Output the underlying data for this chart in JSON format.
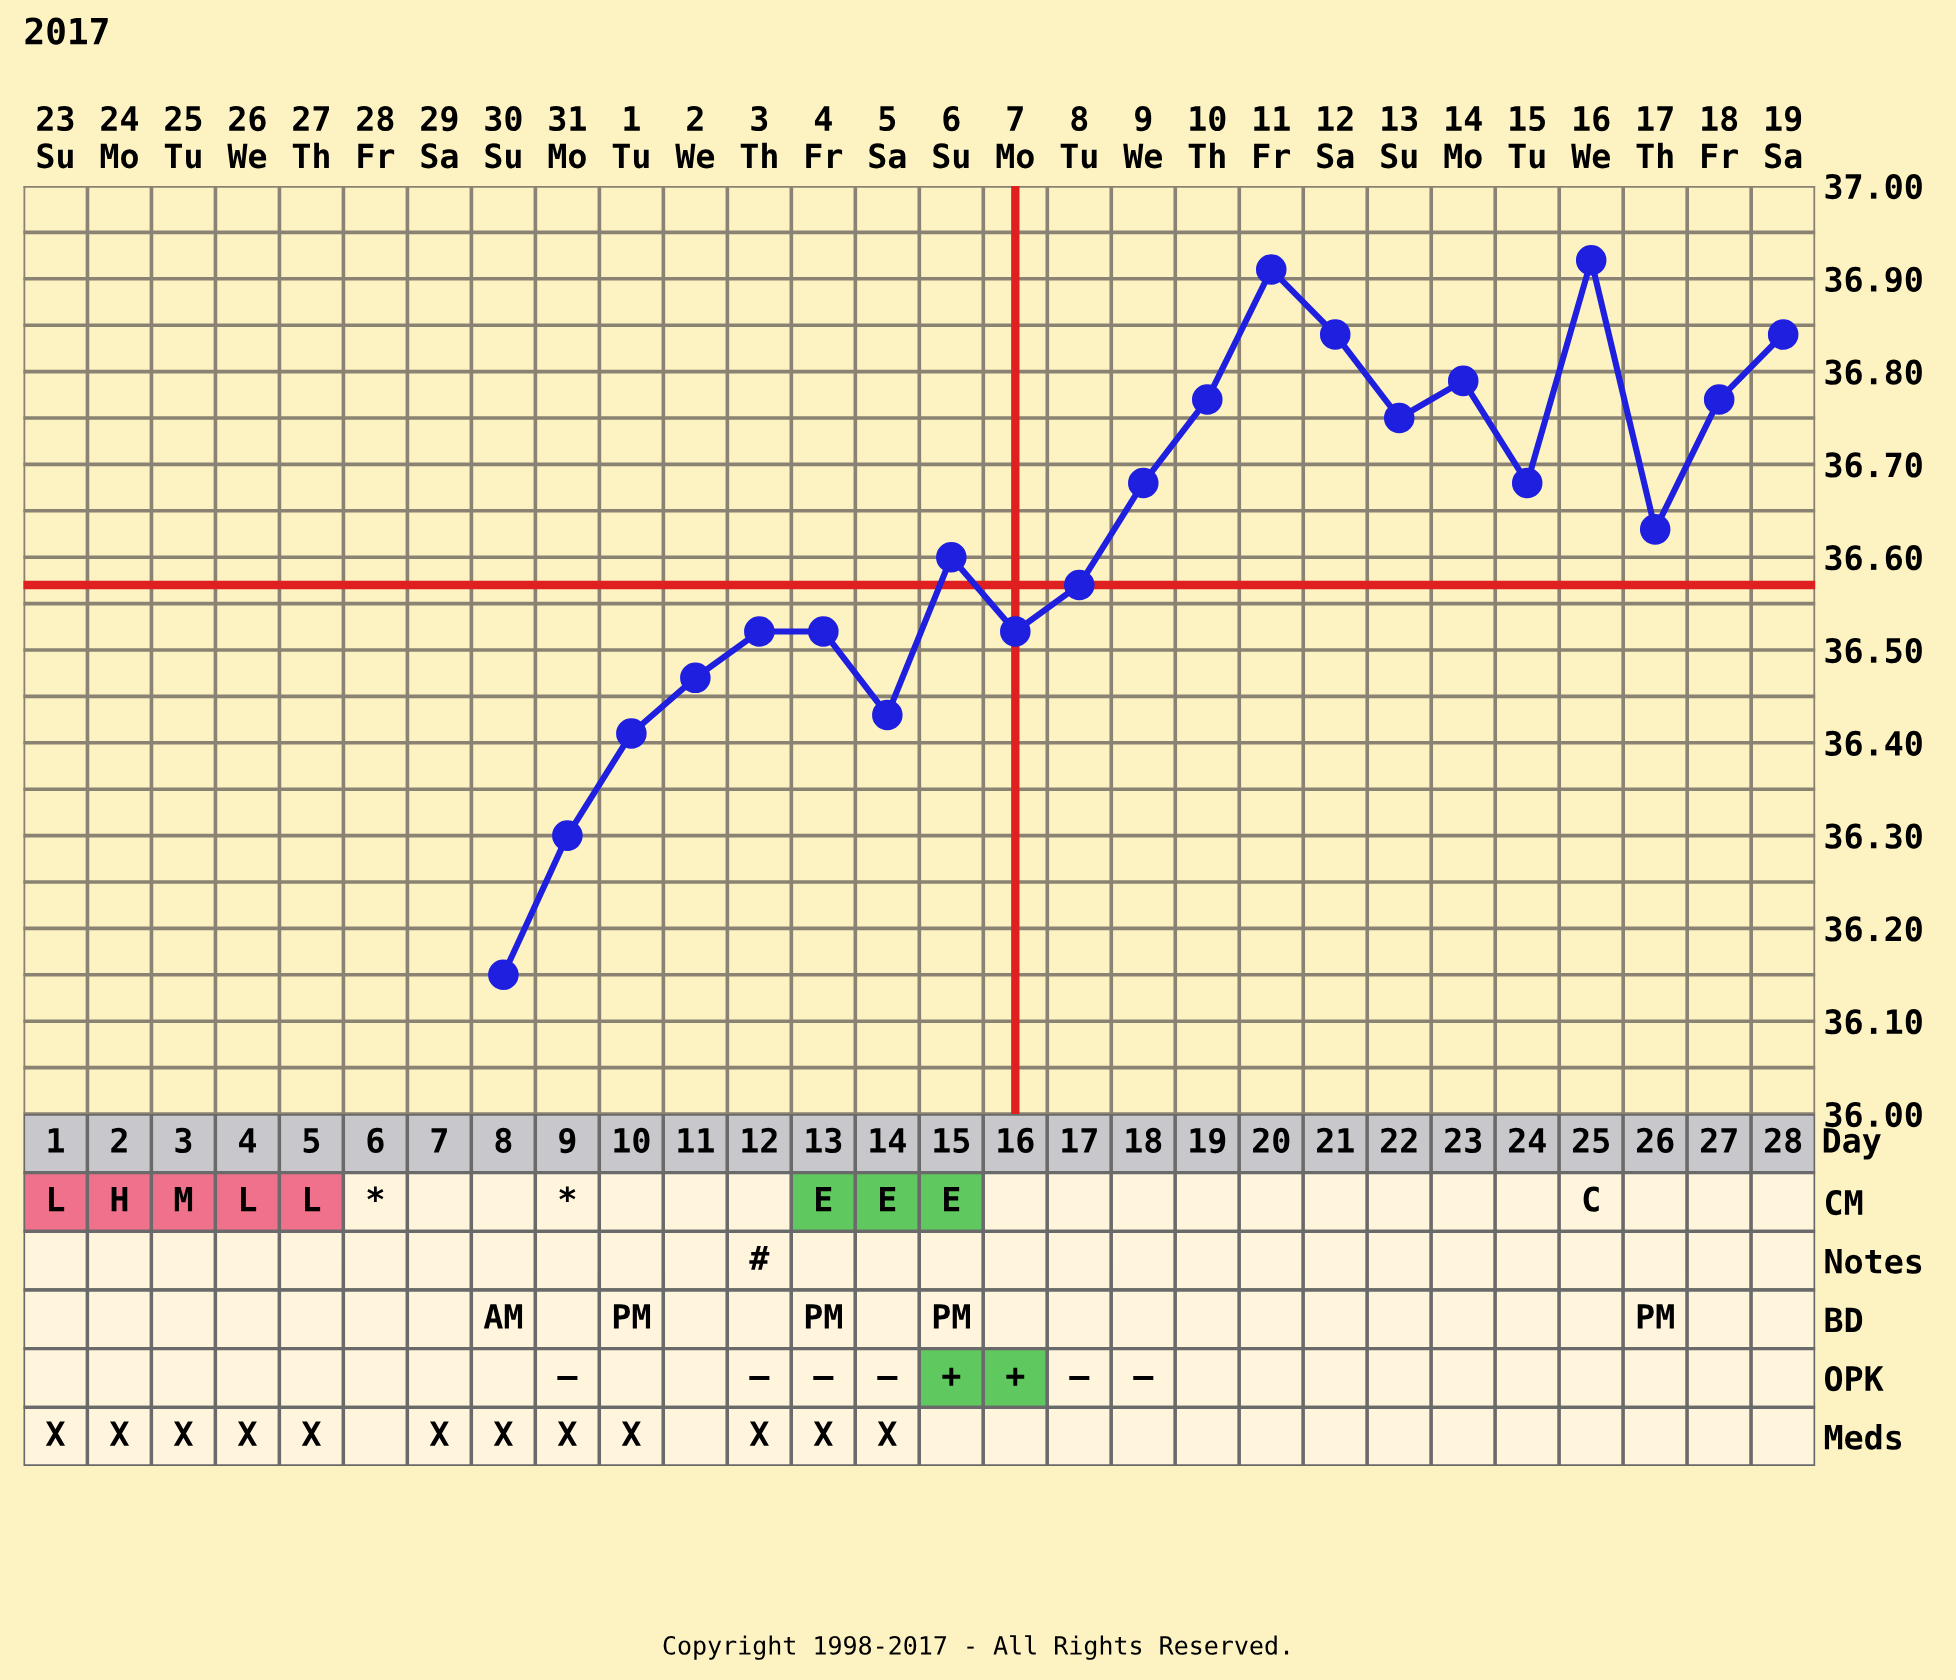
{
  "chart_data": [
    {
      "type": "line",
      "title": "2017",
      "categories": [
        "23\nSu",
        "24\nMo",
        "25\nTu",
        "26\nWe",
        "27\nTh",
        "28\nFr",
        "29\nSa",
        "30\nSu",
        "31\nMo",
        "1\nTu",
        "2\nWe",
        "3\nTh",
        "4\nFr",
        "5\nSa",
        "6\nSu",
        "7\nMo",
        "8\nTu",
        "9\nWe",
        "10\nTh",
        "11\nFr",
        "12\nSa",
        "13\nSu",
        "14\nMo",
        "15\nTu",
        "16\nWe",
        "17\nTh",
        "18\nFr",
        "19\nSa"
      ],
      "series": [
        {
          "color": "#1f1fe0",
          "values": [
            null,
            null,
            null,
            null,
            null,
            null,
            null,
            36.15,
            36.3,
            36.41,
            36.47,
            36.52,
            36.52,
            36.43,
            36.6,
            36.52,
            36.57,
            36.68,
            36.77,
            36.91,
            36.84,
            36.75,
            36.79,
            36.68,
            36.92,
            36.63,
            36.77,
            36.84
          ]
        }
      ],
      "marker": "circle",
      "line_style": "solid",
      "ylim": [
        36.0,
        37.0
      ],
      "yticks": [
        "36.00",
        {
          "value": 36.05,
          "label": null
        },
        {
          "value": 36.1,
          "label": "36.10"
        },
        {
          "value": 36.15,
          "label": null
        },
        {
          "value": 36.2,
          "label": "36.20"
        },
        {
          "value": 36.25,
          "label": null
        },
        {
          "value": 36.3,
          "label": "36.30"
        },
        {
          "value": 36.35,
          "label": null
        },
        {
          "value": 36.4,
          "label": "36.40"
        },
        {
          "value": 36.45,
          "label": null
        },
        {
          "value": 36.5,
          "label": "36.50"
        },
        {
          "value": 36.55,
          "label": null
        },
        {
          "value": 36.6,
          "label": "36.60"
        },
        {
          "value": 36.65,
          "label": null
        },
        {
          "value": 36.7,
          "label": "36.70"
        },
        {
          "value": 36.75,
          "label": null
        },
        {
          "value": 36.8,
          "label": "36.80"
        },
        {
          "value": 36.85,
          "label": null
        },
        {
          "value": 36.9,
          "label": "36.90"
        },
        {
          "value": 36.95,
          "label": null
        },
        {
          "value": 37.0,
          "label": "37.00"
        }
      ],
      "grid": true,
      "ref_lines": [
        {
          "axis": "y",
          "value": 36.57,
          "color": "#e02020"
        },
        {
          "axis": "x",
          "value": "7\nMo",
          "color": "#e02020"
        }
      ]
    },
    {
      "type": "heatmap",
      "xlabel": "Day",
      "categories": [
        "1",
        "2",
        "3",
        "4",
        "5",
        "6",
        "7",
        "8",
        "9",
        "10",
        "11",
        "12",
        "13",
        "14",
        "15",
        "16",
        "17",
        "18",
        "19",
        "20",
        "21",
        "22",
        "23",
        "24",
        "25",
        "26",
        "27",
        "28"
      ],
      "y_categories": [
        "CM",
        "Notes",
        "BD",
        "OPK",
        "Meds"
      ],
      "cells": [
        [
          null,
          null,
          null,
          null,
          null,
          null,
          null,
          null,
          null,
          null,
          null,
          null,
          null,
          null,
          null,
          null,
          null,
          null,
          null,
          null,
          null,
          null,
          null,
          null,
          null,
          null,
          null,
          null
        ],
        [
          null,
          null,
          null,
          null,
          null,
          null,
          null,
          null,
          null,
          null,
          null,
          null,
          null,
          null,
          null,
          null,
          null,
          null,
          null,
          null,
          null,
          null,
          null,
          null,
          null,
          null,
          null,
          null
        ],
        [
          null,
          null,
          null,
          null,
          null,
          null,
          null,
          null,
          null,
          null,
          null,
          null,
          null,
          null,
          null,
          null,
          null,
          null,
          null,
          null,
          null,
          null,
          null,
          null,
          null,
          null,
          null,
          null
        ],
        [
          null,
          null,
          null,
          null,
          null,
          null,
          null,
          null,
          null,
          null,
          null,
          null,
          null,
          null,
          null,
          null,
          null,
          null,
          null,
          null,
          null,
          null,
          null,
          null,
          null,
          null,
          null,
          null
        ],
        [
          null,
          null,
          null,
          null,
          null,
          null,
          null,
          null,
          null,
          null,
          null,
          null,
          null,
          null,
          null,
          null,
          null,
          null,
          null,
          null,
          null,
          null,
          null,
          null,
          null,
          null,
          null,
          null
        ]
      ],
      "cell_labels": [
        [
          "L",
          "H",
          "M",
          "L",
          "L",
          "*",
          null,
          null,
          "*",
          null,
          null,
          null,
          "E",
          "E",
          "E",
          null,
          null,
          null,
          null,
          null,
          null,
          null,
          null,
          null,
          "C",
          null,
          null,
          null
        ],
        [
          null,
          null,
          null,
          null,
          null,
          null,
          null,
          null,
          null,
          null,
          null,
          "#",
          null,
          null,
          null,
          null,
          null,
          null,
          null,
          null,
          null,
          null,
          null,
          null,
          null,
          null,
          null,
          null
        ],
        [
          null,
          null,
          null,
          null,
          null,
          null,
          null,
          "AM",
          null,
          "PM",
          null,
          null,
          "PM",
          null,
          "PM",
          null,
          null,
          null,
          null,
          null,
          null,
          null,
          null,
          null,
          null,
          "PM",
          null,
          null
        ],
        [
          null,
          null,
          null,
          null,
          null,
          null,
          null,
          null,
          "–",
          null,
          null,
          "–",
          "–",
          "–",
          "+",
          "+",
          "–",
          "–",
          null,
          null,
          null,
          null,
          null,
          null,
          null,
          null,
          null,
          null
        ],
        [
          "X",
          "X",
          "X",
          "X",
          "X",
          null,
          "X",
          "X",
          "X",
          "X",
          null,
          "X",
          "X",
          "X",
          null,
          null,
          null,
          null,
          null,
          null,
          null,
          null,
          null,
          null,
          null,
          null,
          null,
          null
        ]
      ],
      "colors": [
        [
          "#f0718c",
          "#f0718c",
          "#f0718c",
          "#f0718c",
          "#f0718c",
          null,
          null,
          null,
          null,
          null,
          null,
          null,
          "#5fc95f",
          "#5fc95f",
          "#5fc95f",
          null,
          null,
          null,
          null,
          null,
          null,
          null,
          null,
          null,
          null,
          null,
          null,
          null
        ],
        [
          null,
          null,
          null,
          null,
          null,
          null,
          null,
          null,
          null,
          null,
          null,
          null,
          null,
          null,
          null,
          null,
          null,
          null,
          null,
          null,
          null,
          null,
          null,
          null,
          null,
          null,
          null,
          null
        ],
        [
          null,
          null,
          null,
          null,
          null,
          null,
          null,
          null,
          null,
          null,
          null,
          null,
          null,
          null,
          null,
          null,
          null,
          null,
          null,
          null,
          null,
          null,
          null,
          null,
          null,
          null,
          null,
          null
        ],
        [
          null,
          null,
          null,
          null,
          null,
          null,
          null,
          null,
          null,
          null,
          null,
          null,
          null,
          null,
          "#5fc95f",
          "#5fc95f",
          null,
          null,
          null,
          null,
          null,
          null,
          null,
          null,
          null,
          null,
          null,
          null
        ],
        [
          null,
          null,
          null,
          null,
          null,
          null,
          null,
          null,
          null,
          null,
          null,
          null,
          null,
          null,
          null,
          null,
          null,
          null,
          null,
          null,
          null,
          null,
          null,
          null,
          null,
          null,
          null,
          null
        ]
      ],
      "annotations": [
        "Copyright 1998-2017 - All Rights Reserved."
      ]
    }
  ]
}
